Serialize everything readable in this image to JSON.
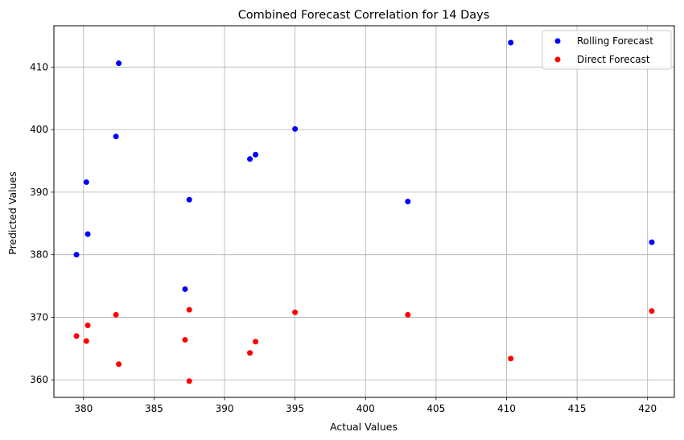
{
  "chart_data": {
    "type": "scatter",
    "title": "Combined Forecast Correlation for 14 Days",
    "xlabel": "Actual Values",
    "ylabel": "Predicted Values",
    "xlim": [
      377.9,
      421.9
    ],
    "ylim": [
      357.2,
      416.6
    ],
    "xticks": [
      380,
      385,
      390,
      395,
      400,
      405,
      410,
      415,
      420
    ],
    "yticks": [
      360,
      370,
      380,
      390,
      400,
      410
    ],
    "grid": true,
    "legend_position": "top-right",
    "series": [
      {
        "name": "Rolling Forecast",
        "color": "#0000ff",
        "points": [
          [
            379.5,
            380.0
          ],
          [
            380.2,
            391.6
          ],
          [
            380.3,
            383.3
          ],
          [
            382.3,
            398.9
          ],
          [
            382.5,
            410.6
          ],
          [
            387.2,
            374.5
          ],
          [
            387.5,
            388.8
          ],
          [
            391.8,
            395.3
          ],
          [
            392.2,
            396.0
          ],
          [
            395.0,
            400.1
          ],
          [
            403.0,
            388.5
          ],
          [
            410.3,
            413.9
          ],
          [
            420.3,
            382.0
          ]
        ]
      },
      {
        "name": "Direct Forecast",
        "color": "#ff0000",
        "points": [
          [
            379.5,
            367.0
          ],
          [
            380.2,
            366.2
          ],
          [
            380.3,
            368.7
          ],
          [
            382.3,
            370.4
          ],
          [
            382.5,
            362.5
          ],
          [
            387.2,
            366.4
          ],
          [
            387.5,
            371.2
          ],
          [
            387.5,
            359.8
          ],
          [
            391.8,
            364.3
          ],
          [
            392.2,
            366.1
          ],
          [
            395.0,
            370.8
          ],
          [
            403.0,
            370.4
          ],
          [
            410.3,
            363.4
          ],
          [
            420.3,
            371.0
          ]
        ]
      }
    ]
  }
}
